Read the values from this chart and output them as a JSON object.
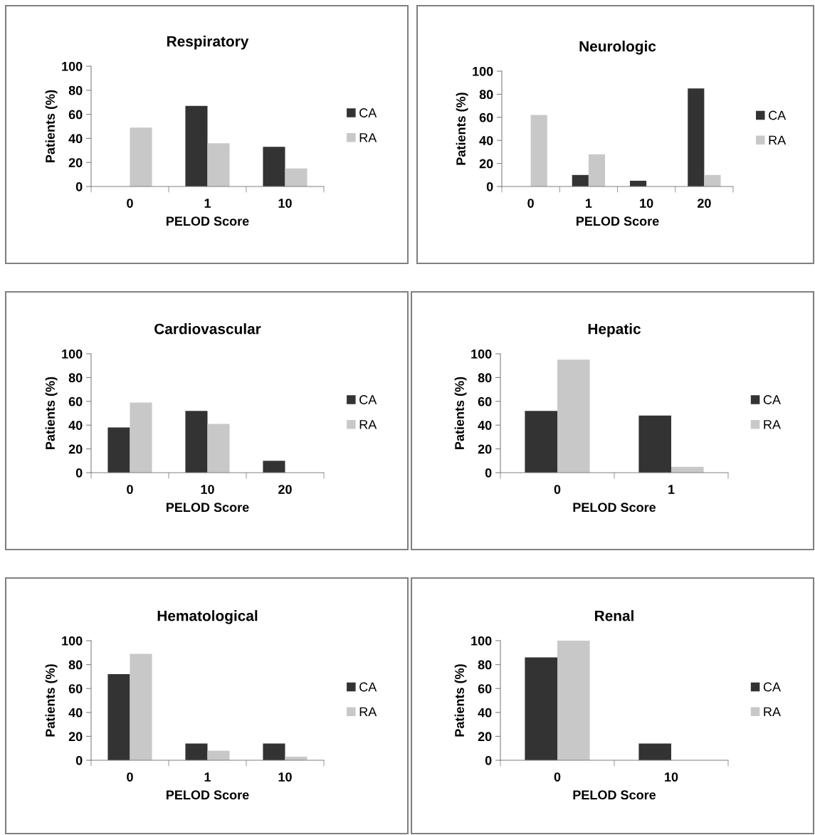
{
  "chart_data": [
    {
      "type": "bar",
      "title": "Respiratory",
      "xlabel": "PELOD Score",
      "ylabel": "Patients (%)",
      "categories": [
        "0",
        "1",
        "10"
      ],
      "ylim": [
        0,
        100
      ],
      "yticks": [
        0,
        20,
        40,
        60,
        80,
        100
      ],
      "grid": false,
      "legend": "right",
      "series": [
        {
          "name": "CA",
          "color": "#333333",
          "values": [
            0,
            67,
            33
          ]
        },
        {
          "name": "RA",
          "color": "#c8c8c8",
          "values": [
            49,
            36,
            15
          ]
        }
      ]
    },
    {
      "type": "bar",
      "title": "Neurologic",
      "xlabel": "PELOD Score",
      "ylabel": "Patients (%)",
      "categories": [
        "0",
        "1",
        "10",
        "20"
      ],
      "ylim": [
        0,
        100
      ],
      "yticks": [
        0,
        20,
        40,
        60,
        80,
        100
      ],
      "grid": false,
      "legend": "right",
      "series": [
        {
          "name": "CA",
          "color": "#333333",
          "values": [
            0,
            10,
            5,
            85
          ]
        },
        {
          "name": "RA",
          "color": "#c8c8c8",
          "values": [
            62,
            28,
            0,
            10
          ]
        }
      ]
    },
    {
      "type": "bar",
      "title": "Cardiovascular",
      "xlabel": "PELOD Score",
      "ylabel": "Patients (%)",
      "categories": [
        "0",
        "10",
        "20"
      ],
      "ylim": [
        0,
        100
      ],
      "yticks": [
        0,
        20,
        40,
        60,
        80,
        100
      ],
      "grid": false,
      "legend": "right",
      "series": [
        {
          "name": "CA",
          "color": "#333333",
          "values": [
            38,
            52,
            10
          ]
        },
        {
          "name": "RA",
          "color": "#c8c8c8",
          "values": [
            59,
            41,
            0
          ]
        }
      ]
    },
    {
      "type": "bar",
      "title": "Hepatic",
      "xlabel": "PELOD Score",
      "ylabel": "Patients (%)",
      "categories": [
        "0",
        "1"
      ],
      "ylim": [
        0,
        100
      ],
      "yticks": [
        0,
        20,
        40,
        60,
        80,
        100
      ],
      "grid": false,
      "legend": "right",
      "series": [
        {
          "name": "CA",
          "color": "#333333",
          "values": [
            52,
            48
          ]
        },
        {
          "name": "RA",
          "color": "#c8c8c8",
          "values": [
            95,
            5
          ]
        }
      ]
    },
    {
      "type": "bar",
      "title": "Hematological",
      "xlabel": "PELOD Score",
      "ylabel": "Patients (%)",
      "categories": [
        "0",
        "1",
        "10"
      ],
      "ylim": [
        0,
        100
      ],
      "yticks": [
        0,
        20,
        40,
        60,
        80,
        100
      ],
      "grid": false,
      "legend": "right",
      "series": [
        {
          "name": "CA",
          "color": "#333333",
          "values": [
            72,
            14,
            14
          ]
        },
        {
          "name": "RA",
          "color": "#c8c8c8",
          "values": [
            89,
            8,
            3
          ]
        }
      ]
    },
    {
      "type": "bar",
      "title": "Renal",
      "xlabel": "PELOD Score",
      "ylabel": "Patients (%)",
      "categories": [
        "0",
        "10"
      ],
      "ylim": [
        0,
        100
      ],
      "yticks": [
        0,
        20,
        40,
        60,
        80,
        100
      ],
      "grid": false,
      "legend": "right",
      "series": [
        {
          "name": "CA",
          "color": "#333333",
          "values": [
            86,
            14
          ]
        },
        {
          "name": "RA",
          "color": "#c8c8c8",
          "values": [
            100,
            0
          ]
        }
      ]
    }
  ]
}
